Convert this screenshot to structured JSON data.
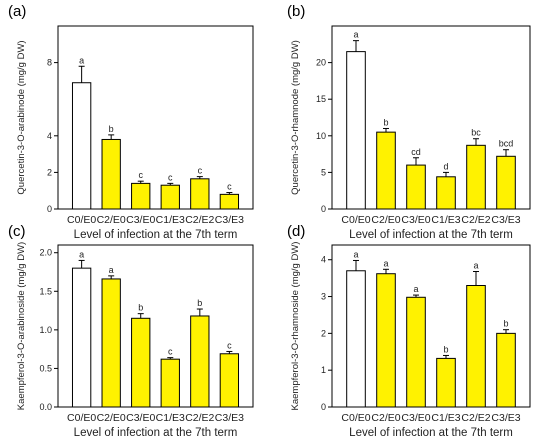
{
  "chart_data": [
    {
      "type": "bar",
      "panel_label": "(a)",
      "ylabel": "Quercetin-3-O-arabinode (mg/g DW)",
      "xlabel": "Level of infection at the 7th term",
      "categories": [
        "C0/E0",
        "C2/E0",
        "C3/E0",
        "C1/E3",
        "C2/E2",
        "C3/E3"
      ],
      "values": [
        6.9,
        3.8,
        1.4,
        1.3,
        1.65,
        0.8
      ],
      "errors": [
        0.9,
        0.25,
        0.12,
        0.1,
        0.12,
        0.1
      ],
      "letters": [
        "a",
        "b",
        "c",
        "c",
        "c",
        "c"
      ],
      "ylim": [
        0,
        10
      ],
      "yticks": [
        0,
        2,
        4,
        8
      ],
      "colors": [
        "#ffffff",
        "#fff200",
        "#fff200",
        "#fff200",
        "#fff200",
        "#fff200"
      ]
    },
    {
      "type": "bar",
      "panel_label": "(b)",
      "ylabel": "Quercetin-3-O-rhamnode (mg/g DW)",
      "xlabel": "Level of infection at the 7th term",
      "categories": [
        "C0/E0",
        "C2/E0",
        "C3/E0",
        "C1/E3",
        "C2/E2",
        "C3/E3"
      ],
      "values": [
        21.5,
        10.5,
        6.0,
        4.4,
        8.7,
        7.2
      ],
      "errors": [
        1.5,
        0.5,
        1.0,
        0.6,
        0.9,
        0.9
      ],
      "letters": [
        "a",
        "b",
        "cd",
        "d",
        "bc",
        "bcd"
      ],
      "ylim": [
        0,
        25
      ],
      "yticks": [
        0,
        5,
        10,
        15,
        20
      ],
      "colors": [
        "#ffffff",
        "#fff200",
        "#fff200",
        "#fff200",
        "#fff200",
        "#fff200"
      ]
    },
    {
      "type": "bar",
      "panel_label": "(c)",
      "ylabel": "Kaempferol-3-O-arabinoside (mg/g DW)",
      "xlabel": "Level of infection at the 7th term",
      "categories": [
        "C0/E0",
        "C2/E0",
        "C3/E0",
        "C1/E3",
        "C2/E2",
        "C3/E3"
      ],
      "values": [
        1.8,
        1.66,
        1.15,
        0.62,
        1.18,
        0.69
      ],
      "errors": [
        0.1,
        0.04,
        0.06,
        0.02,
        0.09,
        0.03
      ],
      "letters": [
        "a",
        "a",
        "b",
        "c",
        "b",
        "c"
      ],
      "ylim": [
        0,
        2.1
      ],
      "yticks": [
        0.0,
        0.5,
        1.0,
        1.5,
        2.0
      ],
      "tick_decimals": 1,
      "colors": [
        "#ffffff",
        "#fff200",
        "#fff200",
        "#fff200",
        "#fff200",
        "#fff200"
      ]
    },
    {
      "type": "bar",
      "panel_label": "(d)",
      "ylabel": "Kaempferol-3-O-rhamnoside (mg/g DW)",
      "xlabel": "Level of infection at the 7th term",
      "categories": [
        "C0/E0",
        "C2/E0",
        "C3/E0",
        "C1/E3",
        "C2/E2",
        "C3/E3"
      ],
      "values": [
        3.7,
        3.62,
        2.98,
        1.32,
        3.3,
        2.0
      ],
      "errors": [
        0.28,
        0.12,
        0.06,
        0.08,
        0.38,
        0.1
      ],
      "letters": [
        "a",
        "a",
        "a",
        "b",
        "a",
        "b"
      ],
      "ylim": [
        0,
        4.4
      ],
      "yticks": [
        0,
        1,
        2,
        3,
        4
      ],
      "colors": [
        "#ffffff",
        "#fff200",
        "#fff200",
        "#fff200",
        "#fff200",
        "#fff200"
      ]
    }
  ]
}
